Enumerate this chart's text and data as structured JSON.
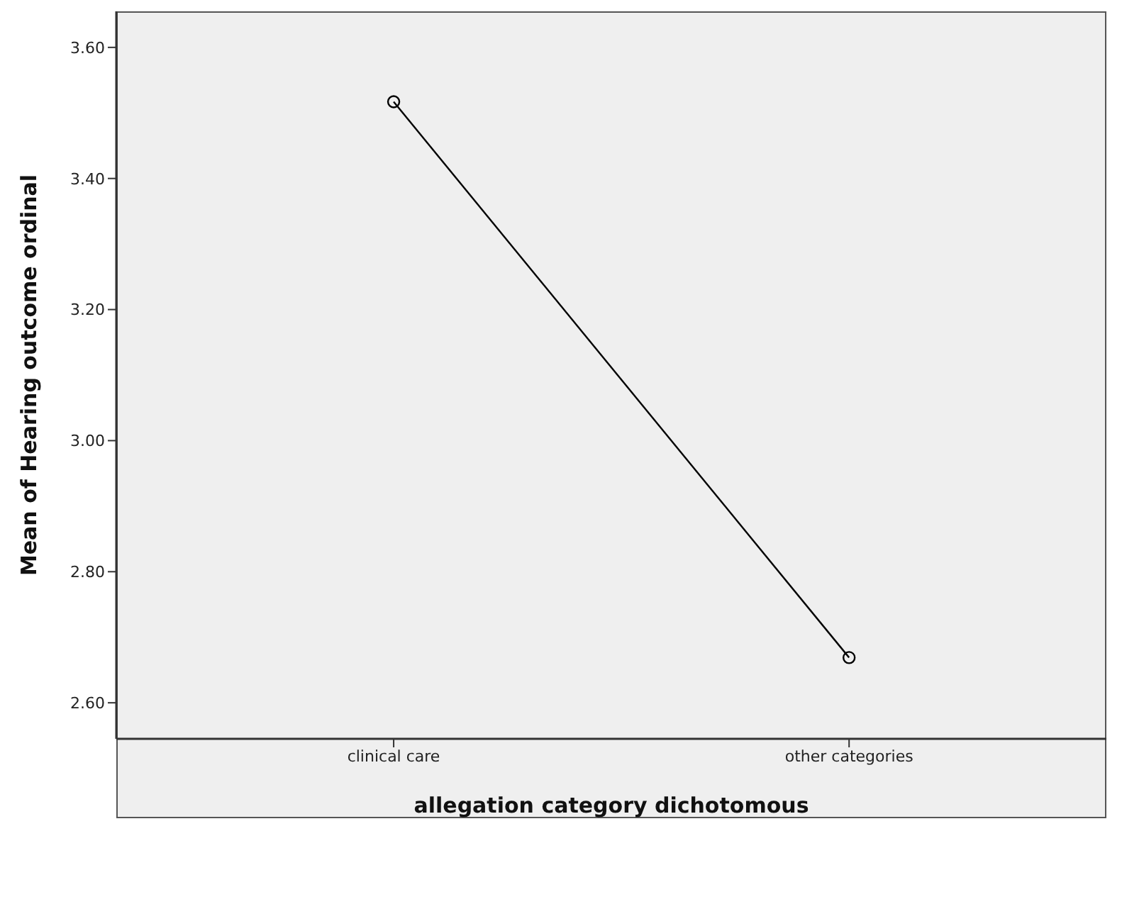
{
  "chart_data": {
    "type": "line",
    "xlabel": "allegation category dichotomous",
    "ylabel": "Mean of Hearing outcome ordinal",
    "categories": [
      "clinical care",
      "other categories"
    ],
    "series": [
      {
        "color": "#000000",
        "values": [
          3.517,
          2.669
        ]
      }
    ],
    "ylim": [
      2.545,
      3.655
    ],
    "yticks": [
      {
        "value": 2.6,
        "label": "2.60"
      },
      {
        "value": 2.8,
        "label": "2.80"
      },
      {
        "value": 3.0,
        "label": "3.00"
      },
      {
        "value": 3.2,
        "label": "3.20"
      },
      {
        "value": 3.4,
        "label": "3.40"
      },
      {
        "value": 3.6,
        "label": "3.60"
      }
    ],
    "marker": "circle",
    "line_style": "solid",
    "grid": false,
    "legend": false
  }
}
